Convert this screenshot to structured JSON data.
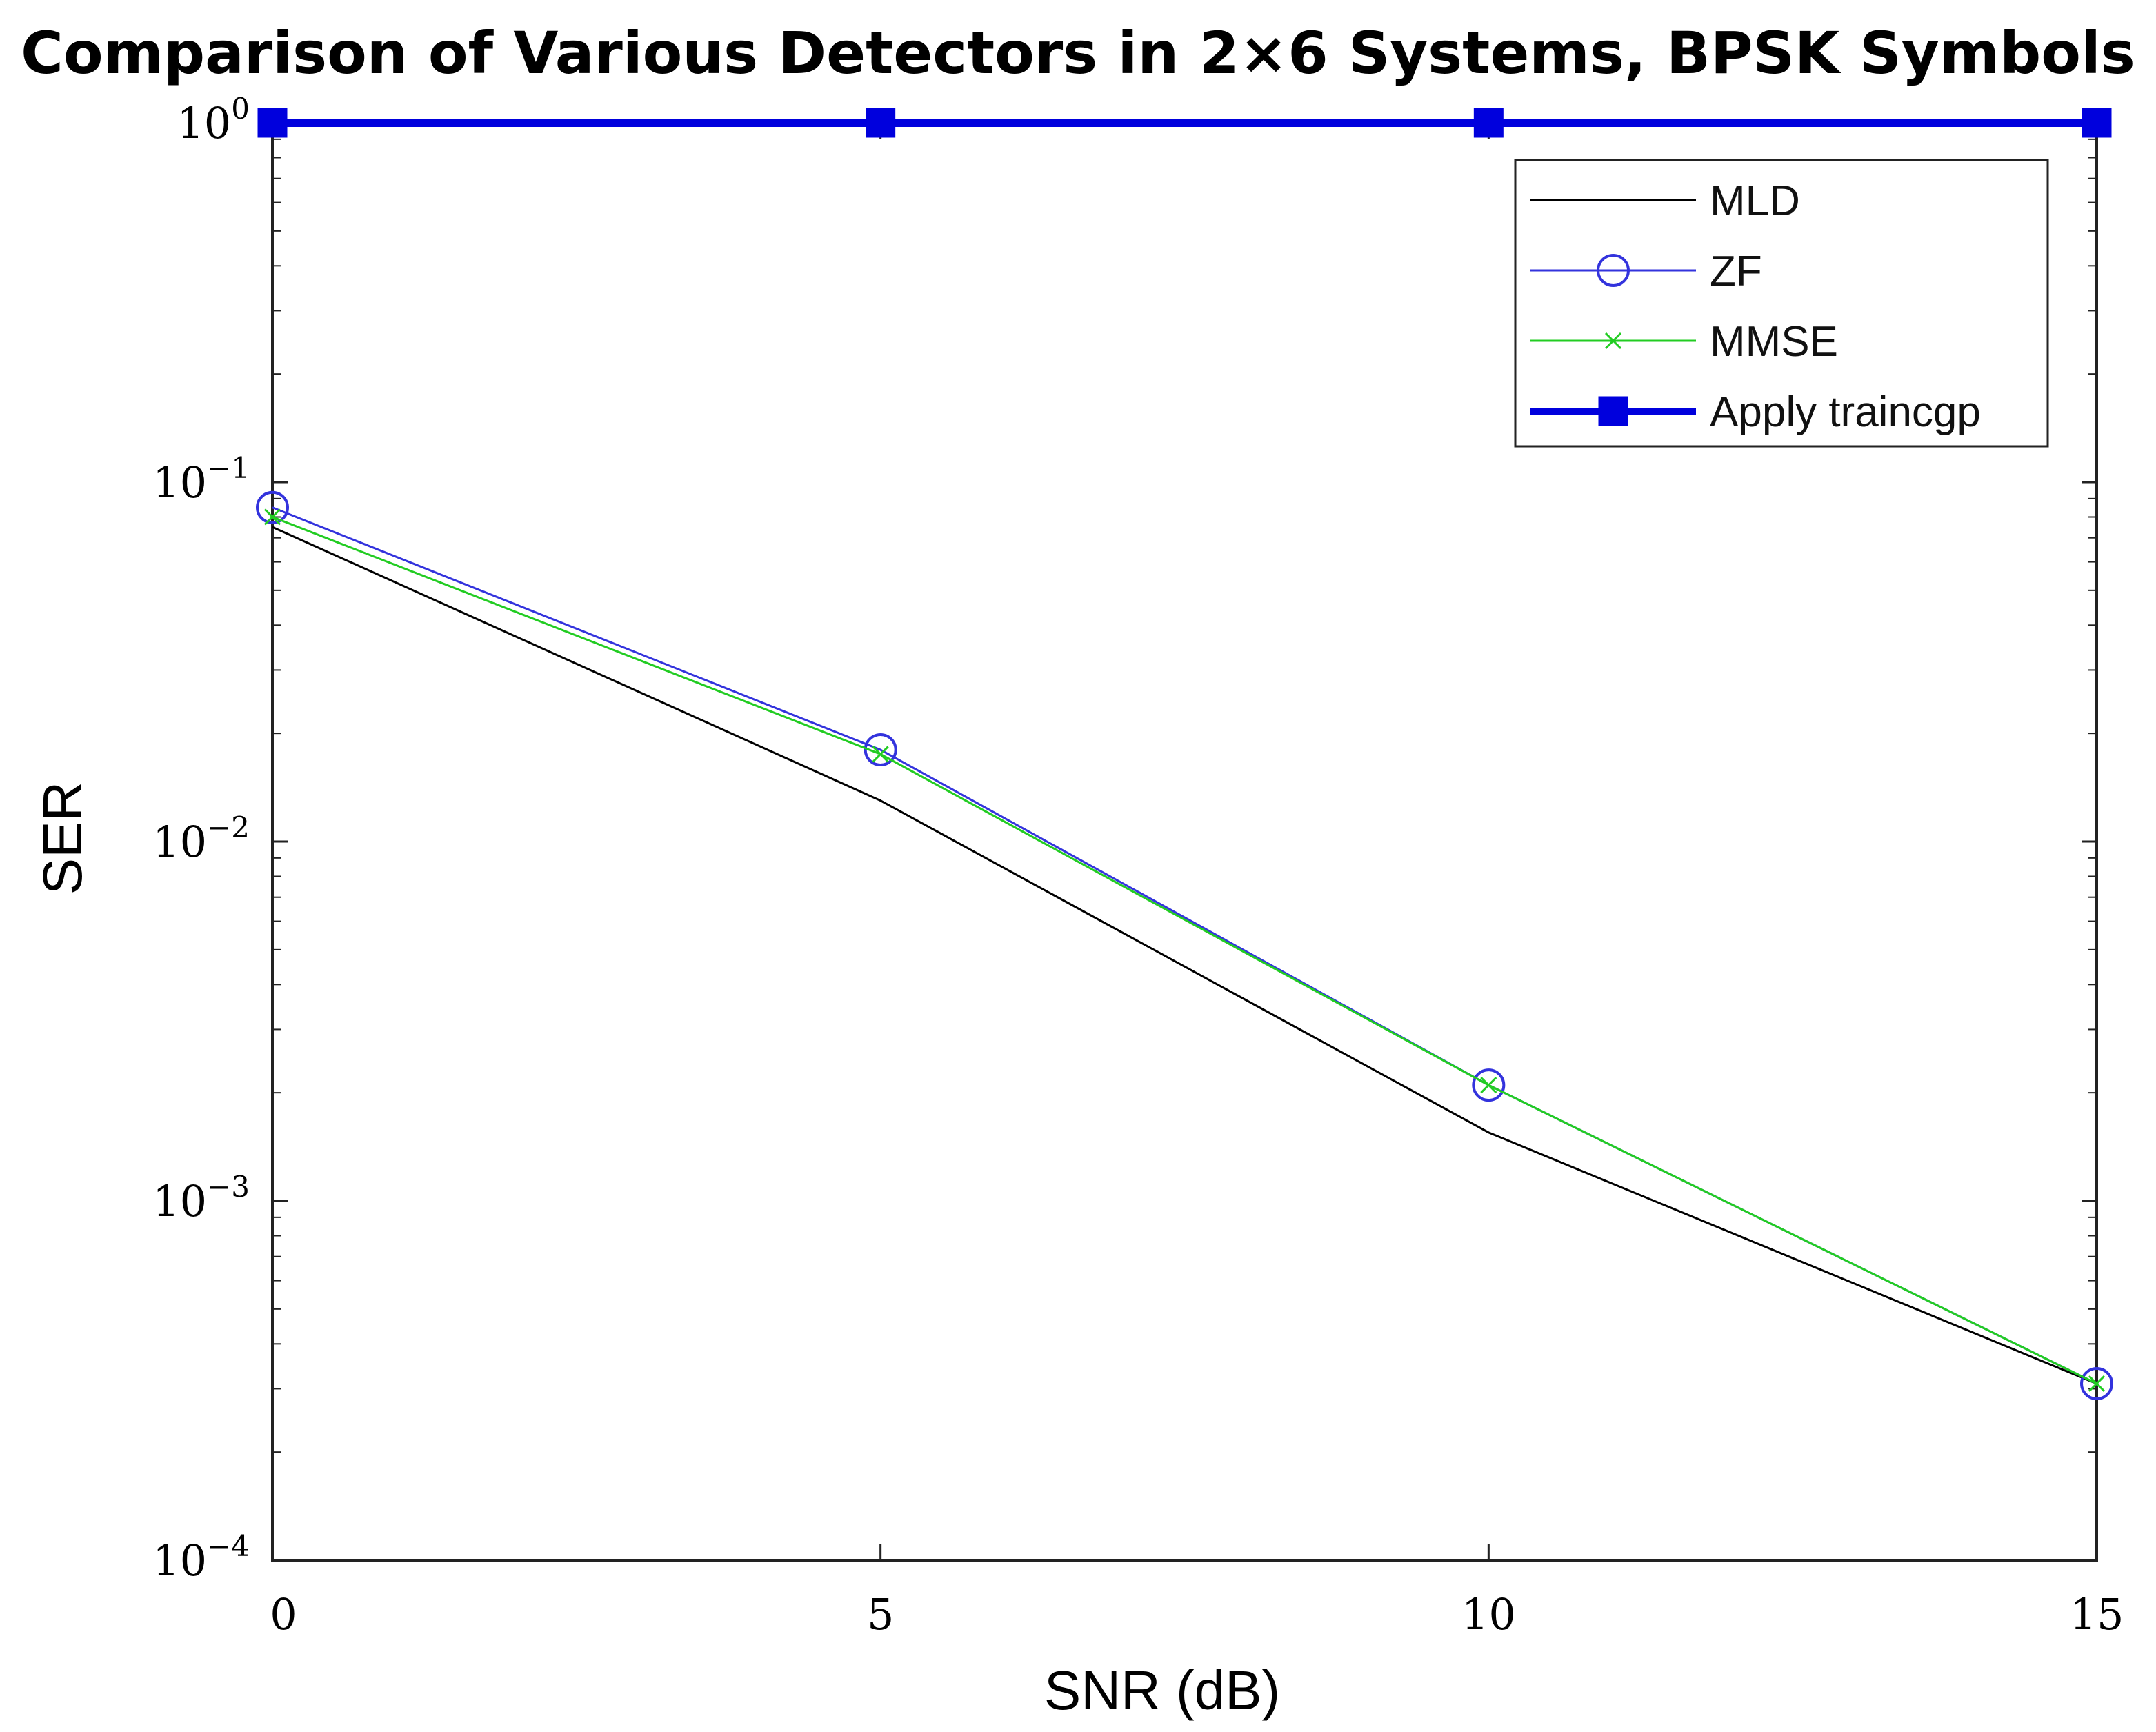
{
  "chart_data": {
    "type": "line",
    "title": "Comparison of Various Detectors in 2×6 Systems, BPSK Symbols",
    "xlabel": "SNR (dB)",
    "ylabel": "SER",
    "yscale": "log",
    "xlim": [
      0,
      15
    ],
    "ylim": [
      0.0001,
      1
    ],
    "xticks": [
      0,
      5,
      10,
      15
    ],
    "xtick_labels": [
      "0",
      "5",
      "10",
      "15"
    ],
    "yticks": [
      {
        "value": 1,
        "base": "10",
        "exp": "0"
      },
      {
        "value": 0.1,
        "base": "10",
        "exp": "−1"
      },
      {
        "value": 0.01,
        "base": "10",
        "exp": "−2"
      },
      {
        "value": 0.001,
        "base": "10",
        "exp": "−3"
      },
      {
        "value": 0.0001,
        "base": "10",
        "exp": "−4"
      }
    ],
    "x": [
      0,
      5,
      10,
      15
    ],
    "series": [
      {
        "name": "MLD",
        "values": [
          0.075,
          0.013,
          0.00155,
          0.00031
        ],
        "color": "#000000",
        "marker": "none",
        "width": 3
      },
      {
        "name": "ZF",
        "values": [
          0.085,
          0.018,
          0.0021,
          0.00031
        ],
        "color": "#3333dd",
        "marker": "circle",
        "width": 3
      },
      {
        "name": "MMSE",
        "values": [
          0.08,
          0.0175,
          0.0021,
          0.00031
        ],
        "color": "#22cc22",
        "marker": "x",
        "width": 3
      },
      {
        "name": "Apply traincgp",
        "values": [
          1,
          1,
          1,
          1
        ],
        "color": "#0000dd",
        "marker": "square",
        "width": 12
      }
    ],
    "legend_position": "top-right",
    "grid": false
  }
}
